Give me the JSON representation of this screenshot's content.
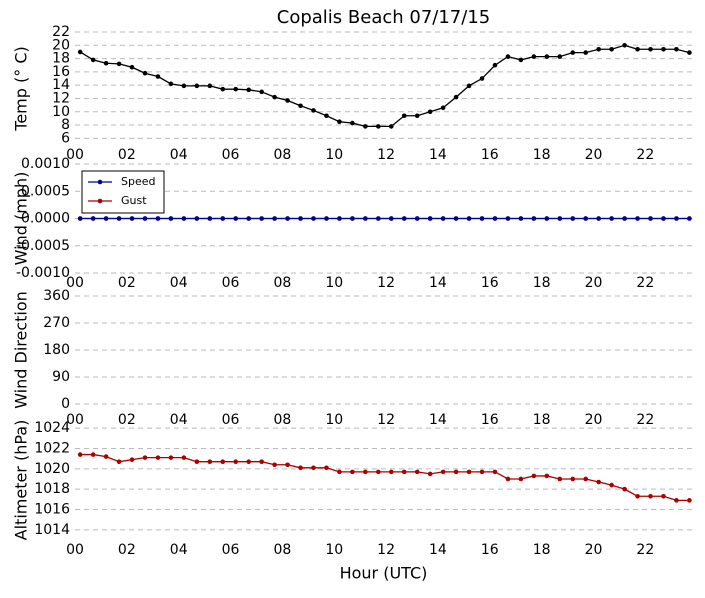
{
  "chart_data": [
    {
      "type": "line",
      "title": "Copalis Beach 07/17/15",
      "y_label": "Temp (° C)",
      "color": "#000000",
      "x": [
        0.2,
        0.7,
        1.2,
        1.7,
        2.2,
        2.7,
        3.2,
        3.7,
        4.2,
        4.7,
        5.2,
        5.7,
        6.2,
        6.7,
        7.2,
        7.7,
        8.2,
        8.7,
        9.2,
        9.7,
        10.2,
        10.7,
        11.2,
        11.7,
        12.2,
        12.7,
        13.2,
        13.7,
        14.2,
        14.7,
        15.2,
        15.7,
        16.2,
        16.7,
        17.2,
        17.7,
        18.2,
        18.7,
        19.2,
        19.7,
        20.2,
        20.7,
        21.2,
        21.7,
        22.2,
        22.7,
        23.2,
        23.7
      ],
      "values": [
        19,
        17.8,
        17.3,
        17.2,
        16.7,
        15.8,
        15.3,
        14.2,
        13.9,
        13.9,
        13.9,
        13.4,
        13.4,
        13.3,
        13,
        12.2,
        11.7,
        10.9,
        10.2,
        9.4,
        8.5,
        8.3,
        7.8,
        7.8,
        7.8,
        9.4,
        9.4,
        10,
        10.6,
        12.2,
        13.9,
        15,
        17,
        18.3,
        17.8,
        18.3,
        18.3,
        18.3,
        18.9,
        18.9,
        19.4,
        19.4,
        20,
        19.4,
        19.4,
        19.4,
        19.4,
        18.9
      ],
      "xlim": [
        0,
        23.8
      ],
      "xticks": [
        {
          "value": 0,
          "label": "00"
        },
        {
          "value": 2,
          "label": "02"
        },
        {
          "value": 4,
          "label": "04"
        },
        {
          "value": 6,
          "label": "06"
        },
        {
          "value": 8,
          "label": "08"
        },
        {
          "value": 10,
          "label": "10"
        },
        {
          "value": 12,
          "label": "12"
        },
        {
          "value": 14,
          "label": "14"
        },
        {
          "value": 16,
          "label": "16"
        },
        {
          "value": 18,
          "label": "18"
        },
        {
          "value": 20,
          "label": "20"
        },
        {
          "value": 22,
          "label": "22"
        }
      ],
      "ylim": [
        5,
        22
      ],
      "yticks": [
        6,
        8,
        10,
        12,
        14,
        16,
        18,
        20,
        22
      ],
      "grid": true
    },
    {
      "type": "line",
      "y_label": "Wind (mph)",
      "legend": "upper left",
      "x": [
        0.2,
        0.7,
        1.2,
        1.7,
        2.2,
        2.7,
        3.2,
        3.7,
        4.2,
        4.7,
        5.2,
        5.7,
        6.2,
        6.7,
        7.2,
        7.7,
        8.2,
        8.7,
        9.2,
        9.7,
        10.2,
        10.7,
        11.2,
        11.7,
        12.2,
        12.7,
        13.2,
        13.7,
        14.2,
        14.7,
        15.2,
        15.7,
        16.2,
        16.7,
        17.2,
        17.7,
        18.2,
        18.7,
        19.2,
        19.7,
        20.2,
        20.7,
        21.2,
        21.7,
        22.2,
        22.7,
        23.2,
        23.7
      ],
      "series": [
        {
          "name": "Gust",
          "color": "#aa0000",
          "values": [
            0,
            0,
            0,
            0,
            0,
            0,
            0,
            0,
            0,
            0,
            0,
            0,
            0,
            0,
            0,
            0,
            0,
            0,
            0,
            0,
            0,
            0,
            0,
            0,
            0,
            0,
            0,
            0,
            0,
            0,
            0,
            0,
            0,
            0,
            0,
            0,
            0,
            0,
            0,
            0,
            0,
            0,
            0,
            0,
            0,
            0,
            0,
            0
          ]
        },
        {
          "name": "Speed",
          "color": "#000099",
          "values": [
            0,
            0,
            0,
            0,
            0,
            0,
            0,
            0,
            0,
            0,
            0,
            0,
            0,
            0,
            0,
            0,
            0,
            0,
            0,
            0,
            0,
            0,
            0,
            0,
            0,
            0,
            0,
            0,
            0,
            0,
            0,
            0,
            0,
            0,
            0,
            0,
            0,
            0,
            0,
            0,
            0,
            0,
            0,
            0,
            0,
            0,
            0,
            0
          ]
        }
      ],
      "xlim": [
        0,
        23.8
      ],
      "xticks": [
        {
          "value": 0,
          "label": "00"
        },
        {
          "value": 2,
          "label": "02"
        },
        {
          "value": 4,
          "label": "04"
        },
        {
          "value": 6,
          "label": "06"
        },
        {
          "value": 8,
          "label": "08"
        },
        {
          "value": 10,
          "label": "10"
        },
        {
          "value": 12,
          "label": "12"
        },
        {
          "value": 14,
          "label": "14"
        },
        {
          "value": 16,
          "label": "16"
        },
        {
          "value": 18,
          "label": "18"
        },
        {
          "value": 20,
          "label": "20"
        },
        {
          "value": 22,
          "label": "22"
        }
      ],
      "ylim": [
        -0.001,
        0.001
      ],
      "yticks": [
        {
          "value": -0.001,
          "label": "-0.0010"
        },
        {
          "value": -0.0005,
          "label": "-0.0005"
        },
        {
          "value": 0,
          "label": "0.0000"
        },
        {
          "value": 0.0005,
          "label": "0.0005"
        },
        {
          "value": 0.001,
          "label": "0.0010"
        }
      ],
      "grid": true
    },
    {
      "type": "line",
      "y_label": "Wind Direction",
      "xlim": [
        0,
        23.8
      ],
      "xticks": [
        {
          "value": 0,
          "label": "00"
        },
        {
          "value": 2,
          "label": "02"
        },
        {
          "value": 4,
          "label": "04"
        },
        {
          "value": 6,
          "label": "06"
        },
        {
          "value": 8,
          "label": "08"
        },
        {
          "value": 10,
          "label": "10"
        },
        {
          "value": 12,
          "label": "12"
        },
        {
          "value": 14,
          "label": "14"
        },
        {
          "value": 16,
          "label": "16"
        },
        {
          "value": 18,
          "label": "18"
        },
        {
          "value": 20,
          "label": "20"
        },
        {
          "value": 22,
          "label": "22"
        }
      ],
      "ylim": [
        -20,
        380
      ],
      "yticks": [
        0,
        90,
        180,
        270,
        360
      ],
      "grid": true
    },
    {
      "type": "line",
      "y_label": "Altimeter (hPa)",
      "x_label": "Hour (UTC)",
      "color": "#aa0000",
      "x": [
        0.2,
        0.7,
        1.2,
        1.7,
        2.2,
        2.7,
        3.2,
        3.7,
        4.2,
        4.7,
        5.2,
        5.7,
        6.2,
        6.7,
        7.2,
        7.7,
        8.2,
        8.7,
        9.2,
        9.7,
        10.2,
        10.7,
        11.2,
        11.7,
        12.2,
        12.7,
        13.2,
        13.7,
        14.2,
        14.7,
        15.2,
        15.7,
        16.2,
        16.7,
        17.2,
        17.7,
        18.2,
        18.7,
        19.2,
        19.7,
        20.2,
        20.7,
        21.2,
        21.7,
        22.2,
        22.7,
        23.2,
        23.7
      ],
      "values": [
        1021.4,
        1021.4,
        1021.2,
        1020.7,
        1020.9,
        1021.1,
        1021.1,
        1021.1,
        1021.1,
        1020.7,
        1020.7,
        1020.7,
        1020.7,
        1020.7,
        1020.7,
        1020.4,
        1020.4,
        1020.1,
        1020.1,
        1020.1,
        1019.7,
        1019.7,
        1019.7,
        1019.7,
        1019.7,
        1019.7,
        1019.7,
        1019.5,
        1019.7,
        1019.7,
        1019.7,
        1019.7,
        1019.7,
        1019,
        1019,
        1019.3,
        1019.3,
        1019,
        1019,
        1019,
        1018.7,
        1018.4,
        1018,
        1017.3,
        1017.3,
        1017.3,
        1016.9,
        1016.9
      ],
      "xlim": [
        0,
        23.8
      ],
      "xticks": [
        {
          "value": 0,
          "label": "00"
        },
        {
          "value": 2,
          "label": "02"
        },
        {
          "value": 4,
          "label": "04"
        },
        {
          "value": 6,
          "label": "06"
        },
        {
          "value": 8,
          "label": "08"
        },
        {
          "value": 10,
          "label": "10"
        },
        {
          "value": 12,
          "label": "12"
        },
        {
          "value": 14,
          "label": "14"
        },
        {
          "value": 16,
          "label": "16"
        },
        {
          "value": 18,
          "label": "18"
        },
        {
          "value": 20,
          "label": "20"
        },
        {
          "value": 22,
          "label": "22"
        }
      ],
      "ylim": [
        1013,
        1024.8
      ],
      "yticks": [
        1014,
        1016,
        1018,
        1020,
        1022,
        1024
      ],
      "grid": true
    }
  ]
}
